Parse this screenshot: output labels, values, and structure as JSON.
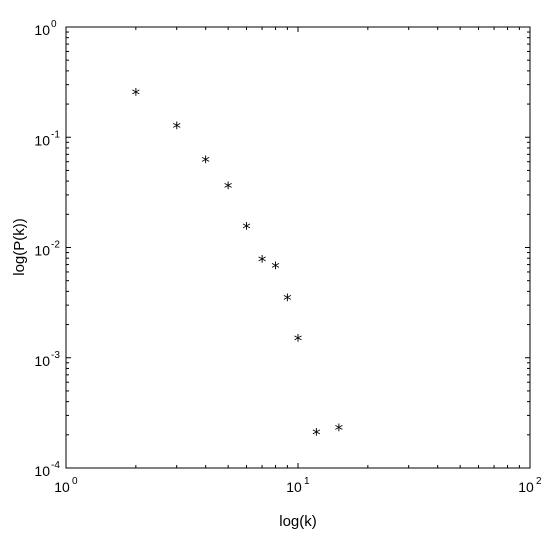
{
  "chart_data": {
    "type": "scatter",
    "title": "",
    "xlabel": "log(k)",
    "ylabel": "log(P(k))",
    "x_scale": "log",
    "y_scale": "log",
    "xlim": [
      1,
      100
    ],
    "ylim": [
      0.0001,
      1
    ],
    "grid": false,
    "marker": "*",
    "x_ticks": [
      {
        "base": "10",
        "exp": "0",
        "value": 1
      },
      {
        "base": "10",
        "exp": "1",
        "value": 10
      },
      {
        "base": "10",
        "exp": "2",
        "value": 100
      }
    ],
    "y_ticks": [
      {
        "base": "10",
        "exp": "0",
        "value": 1
      },
      {
        "base": "10",
        "exp": "-1",
        "value": 0.1
      },
      {
        "base": "10",
        "exp": "-2",
        "value": 0.01
      },
      {
        "base": "10",
        "exp": "-3",
        "value": 0.001
      },
      {
        "base": "10",
        "exp": "-4",
        "value": 0.0001
      }
    ],
    "series": [
      {
        "points": [
          {
            "x": 2,
            "y": 0.255
          },
          {
            "x": 3,
            "y": 0.127
          },
          {
            "x": 4,
            "y": 0.062
          },
          {
            "x": 5,
            "y": 0.036
          },
          {
            "x": 6,
            "y": 0.0155
          },
          {
            "x": 7,
            "y": 0.0078
          },
          {
            "x": 8,
            "y": 0.0068
          },
          {
            "x": 9,
            "y": 0.0035
          },
          {
            "x": 10,
            "y": 0.0015
          },
          {
            "x": 12,
            "y": 0.00021
          },
          {
            "x": 15,
            "y": 0.00023
          }
        ]
      }
    ]
  }
}
